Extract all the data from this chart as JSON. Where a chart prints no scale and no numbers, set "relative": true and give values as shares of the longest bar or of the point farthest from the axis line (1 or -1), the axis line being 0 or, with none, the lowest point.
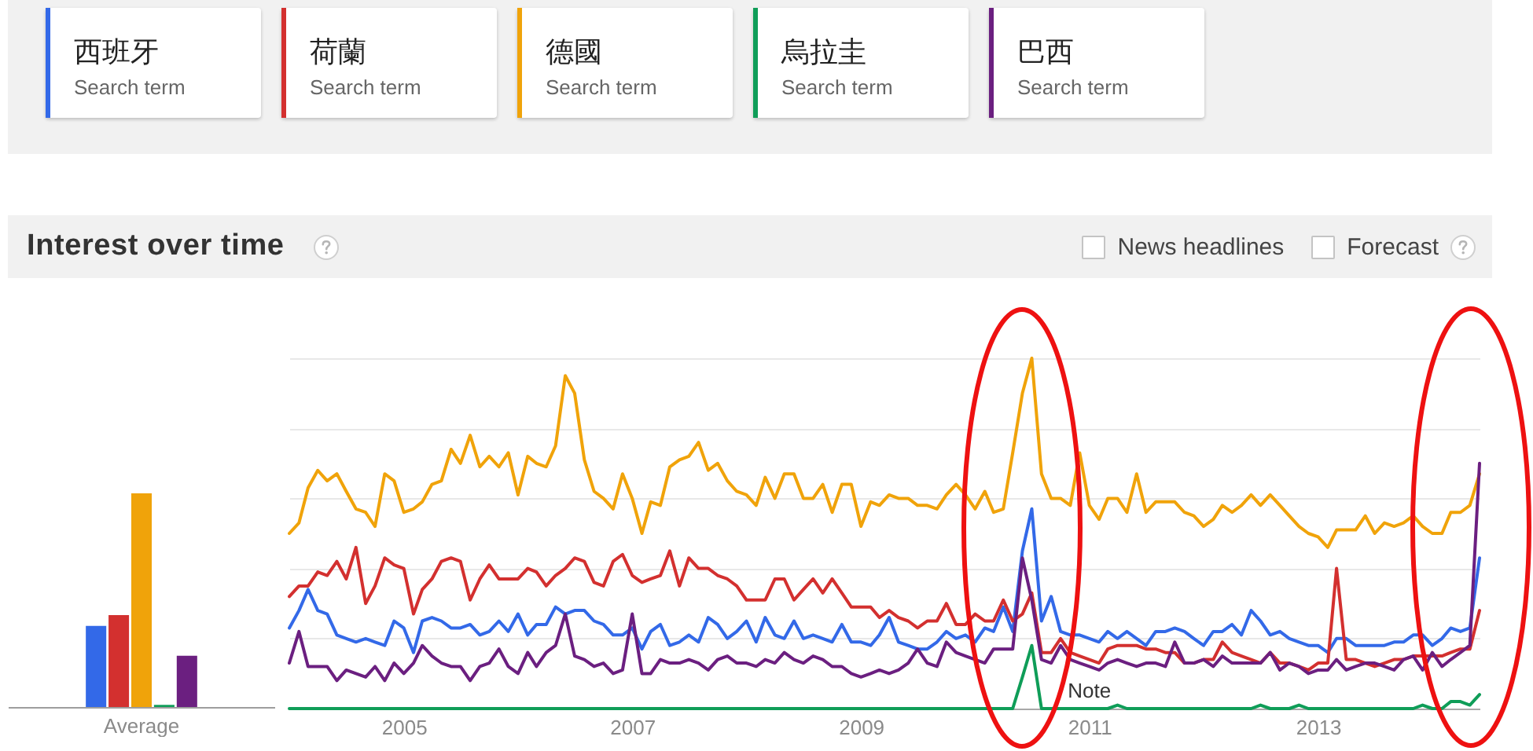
{
  "chart_data": [
    {
      "type": "bar",
      "title": "Interest over time",
      "relative": true,
      "categories": [
        "Average"
      ],
      "series": [
        {
          "color": "#3369e8",
          "values": [
            0.38
          ]
        },
        {
          "color": "#d3302f",
          "values": [
            0.43
          ]
        },
        {
          "color": "#f0a30a",
          "values": [
            1
          ]
        },
        {
          "color": "#0f9d58",
          "values": [
            0.01
          ]
        },
        {
          "color": "#6b1f80",
          "values": [
            0.24
          ]
        }
      ]
    },
    {
      "type": "line",
      "relative": true,
      "grid": "y",
      "legend": "top left",
      "x": [
        "2004-01",
        "2004-02",
        "2004-03",
        "2004-04",
        "2004-05",
        "2004-06",
        "2004-07",
        "2004-08",
        "2004-09",
        "2004-10",
        "2004-11",
        "2004-12",
        "2005-01",
        "2005-02",
        "2005-03",
        "2005-04",
        "2005-05",
        "2005-06",
        "2005-07",
        "2005-08",
        "2005-09",
        "2005-10",
        "2005-11",
        "2005-12",
        "2006-01",
        "2006-02",
        "2006-03",
        "2006-04",
        "2006-05",
        "2006-06",
        "2006-07",
        "2006-08",
        "2006-09",
        "2006-10",
        "2006-11",
        "2006-12",
        "2007-01",
        "2007-02",
        "2007-03",
        "2007-04",
        "2007-05",
        "2007-06",
        "2007-07",
        "2007-08",
        "2007-09",
        "2007-10",
        "2007-11",
        "2007-12",
        "2008-01",
        "2008-02",
        "2008-03",
        "2008-04",
        "2008-05",
        "2008-06",
        "2008-07",
        "2008-08",
        "2008-09",
        "2008-10",
        "2008-11",
        "2008-12",
        "2009-01",
        "2009-02",
        "2009-03",
        "2009-04",
        "2009-05",
        "2009-06",
        "2009-07",
        "2009-08",
        "2009-09",
        "2009-10",
        "2009-11",
        "2009-12",
        "2010-01",
        "2010-02",
        "2010-03",
        "2010-04",
        "2010-05",
        "2010-06",
        "2010-07",
        "2010-08",
        "2010-09",
        "2010-10",
        "2010-11",
        "2010-12",
        "2011-01",
        "2011-02",
        "2011-03",
        "2011-04",
        "2011-05",
        "2011-06",
        "2011-07",
        "2011-08",
        "2011-09",
        "2011-10",
        "2011-11",
        "2011-12",
        "2012-01",
        "2012-02",
        "2012-03",
        "2012-04",
        "2012-05",
        "2012-06",
        "2012-07",
        "2012-08",
        "2012-09",
        "2012-10",
        "2012-11",
        "2012-12",
        "2013-01",
        "2013-02",
        "2013-03",
        "2013-04",
        "2013-05",
        "2013-06",
        "2013-07",
        "2013-08",
        "2013-09",
        "2013-10",
        "2013-11",
        "2013-12",
        "2014-01",
        "2014-02",
        "2014-03",
        "2014-04",
        "2014-05",
        "2014-06"
      ],
      "xlim": [
        "2004-01",
        "2014-06"
      ],
      "xticks": [
        "2005",
        "2007",
        "2009",
        "2011",
        "2013"
      ],
      "series": [
        {
          "name": "西班牙",
          "color": "#3369e8",
          "values": [
            0.23,
            0.28,
            0.34,
            0.28,
            0.27,
            0.21,
            0.2,
            0.19,
            0.2,
            0.19,
            0.18,
            0.25,
            0.23,
            0.16,
            0.25,
            0.26,
            0.25,
            0.23,
            0.23,
            0.24,
            0.21,
            0.22,
            0.25,
            0.22,
            0.27,
            0.21,
            0.24,
            0.24,
            0.29,
            0.27,
            0.28,
            0.28,
            0.25,
            0.24,
            0.21,
            0.21,
            0.23,
            0.17,
            0.22,
            0.24,
            0.18,
            0.19,
            0.21,
            0.19,
            0.26,
            0.24,
            0.2,
            0.22,
            0.25,
            0.19,
            0.26,
            0.21,
            0.2,
            0.25,
            0.2,
            0.21,
            0.2,
            0.19,
            0.24,
            0.19,
            0.19,
            0.18,
            0.21,
            0.26,
            0.19,
            0.18,
            0.17,
            0.17,
            0.19,
            0.22,
            0.2,
            0.21,
            0.19,
            0.23,
            0.22,
            0.29,
            0.22,
            0.45,
            0.57,
            0.25,
            0.32,
            0.22,
            0.21,
            0.21,
            0.2,
            0.19,
            0.22,
            0.2,
            0.22,
            0.2,
            0.18,
            0.22,
            0.22,
            0.23,
            0.22,
            0.2,
            0.18,
            0.22,
            0.22,
            0.24,
            0.21,
            0.28,
            0.25,
            0.21,
            0.22,
            0.2,
            0.19,
            0.18,
            0.18,
            0.16,
            0.2,
            0.2,
            0.18,
            0.18,
            0.18,
            0.18,
            0.19,
            0.19,
            0.21,
            0.21,
            0.18,
            0.2,
            0.23,
            0.22,
            0.23,
            0.43
          ]
        },
        {
          "name": "荷蘭",
          "color": "#d3302f",
          "values": [
            0.32,
            0.35,
            0.35,
            0.39,
            0.38,
            0.42,
            0.37,
            0.46,
            0.3,
            0.35,
            0.43,
            0.41,
            0.4,
            0.27,
            0.34,
            0.37,
            0.42,
            0.43,
            0.42,
            0.31,
            0.37,
            0.41,
            0.37,
            0.37,
            0.37,
            0.4,
            0.39,
            0.35,
            0.38,
            0.4,
            0.43,
            0.42,
            0.36,
            0.35,
            0.42,
            0.44,
            0.38,
            0.36,
            0.37,
            0.38,
            0.45,
            0.35,
            0.43,
            0.4,
            0.4,
            0.38,
            0.37,
            0.35,
            0.31,
            0.31,
            0.31,
            0.37,
            0.37,
            0.31,
            0.34,
            0.37,
            0.33,
            0.37,
            0.33,
            0.29,
            0.29,
            0.29,
            0.26,
            0.28,
            0.26,
            0.25,
            0.23,
            0.25,
            0.25,
            0.3,
            0.24,
            0.24,
            0.27,
            0.25,
            0.25,
            0.31,
            0.25,
            0.27,
            0.33,
            0.16,
            0.16,
            0.2,
            0.16,
            0.15,
            0.14,
            0.13,
            0.17,
            0.18,
            0.18,
            0.18,
            0.17,
            0.17,
            0.16,
            0.16,
            0.13,
            0.13,
            0.14,
            0.14,
            0.19,
            0.16,
            0.15,
            0.14,
            0.13,
            0.16,
            0.13,
            0.13,
            0.12,
            0.11,
            0.13,
            0.13,
            0.4,
            0.14,
            0.14,
            0.13,
            0.12,
            0.13,
            0.14,
            0.14,
            0.15,
            0.15,
            0.15,
            0.15,
            0.16,
            0.17,
            0.17,
            0.28
          ]
        },
        {
          "name": "德國",
          "color": "#f0a30a",
          "values": [
            0.5,
            0.53,
            0.63,
            0.68,
            0.65,
            0.67,
            0.62,
            0.57,
            0.56,
            0.52,
            0.67,
            0.65,
            0.56,
            0.57,
            0.59,
            0.64,
            0.65,
            0.74,
            0.7,
            0.78,
            0.69,
            0.72,
            0.69,
            0.73,
            0.61,
            0.72,
            0.7,
            0.69,
            0.75,
            0.95,
            0.9,
            0.71,
            0.62,
            0.6,
            0.57,
            0.67,
            0.6,
            0.5,
            0.59,
            0.58,
            0.69,
            0.71,
            0.72,
            0.76,
            0.68,
            0.7,
            0.65,
            0.62,
            0.61,
            0.58,
            0.66,
            0.6,
            0.67,
            0.67,
            0.6,
            0.6,
            0.64,
            0.56,
            0.64,
            0.64,
            0.52,
            0.59,
            0.58,
            0.61,
            0.6,
            0.6,
            0.58,
            0.58,
            0.57,
            0.61,
            0.64,
            0.61,
            0.57,
            0.62,
            0.56,
            0.57,
            0.73,
            0.9,
            1,
            0.67,
            0.6,
            0.6,
            0.58,
            0.73,
            0.58,
            0.54,
            0.6,
            0.6,
            0.56,
            0.67,
            0.56,
            0.59,
            0.59,
            0.59,
            0.56,
            0.55,
            0.52,
            0.54,
            0.58,
            0.56,
            0.58,
            0.61,
            0.58,
            0.61,
            0.58,
            0.55,
            0.52,
            0.5,
            0.49,
            0.46,
            0.51,
            0.51,
            0.51,
            0.55,
            0.5,
            0.53,
            0.52,
            0.53,
            0.55,
            0.52,
            0.5,
            0.5,
            0.56,
            0.56,
            0.58,
            0.67
          ]
        },
        {
          "name": "烏拉圭",
          "color": "#0f9d58",
          "values": [
            0,
            0,
            0,
            0,
            0,
            0,
            0,
            0,
            0,
            0,
            0,
            0,
            0,
            0,
            0,
            0,
            0,
            0,
            0,
            0,
            0,
            0,
            0,
            0,
            0,
            0,
            0,
            0,
            0,
            0,
            0,
            0,
            0,
            0,
            0,
            0,
            0,
            0,
            0,
            0,
            0,
            0,
            0,
            0,
            0,
            0,
            0,
            0,
            0,
            0,
            0,
            0,
            0,
            0,
            0,
            0,
            0,
            0,
            0,
            0,
            0,
            0,
            0,
            0,
            0,
            0,
            0,
            0,
            0,
            0,
            0,
            0,
            0,
            0,
            0,
            0,
            0,
            0.09,
            0.18,
            0,
            0,
            0,
            0,
            0,
            0,
            0,
            0,
            0.01,
            0,
            0,
            0,
            0,
            0,
            0,
            0,
            0,
            0,
            0,
            0,
            0,
            0,
            0,
            0.01,
            0,
            0,
            0,
            0.01,
            0,
            0,
            0,
            0,
            0,
            0,
            0,
            0,
            0,
            0,
            0,
            0,
            0.01,
            0,
            0,
            0.02,
            0.02,
            0.01,
            0.04
          ]
        },
        {
          "name": "巴西",
          "color": "#6b1f80",
          "values": [
            0.13,
            0.22,
            0.12,
            0.12,
            0.12,
            0.08,
            0.11,
            0.1,
            0.09,
            0.12,
            0.08,
            0.13,
            0.1,
            0.13,
            0.18,
            0.15,
            0.13,
            0.12,
            0.12,
            0.08,
            0.12,
            0.13,
            0.17,
            0.12,
            0.1,
            0.16,
            0.12,
            0.16,
            0.18,
            0.27,
            0.15,
            0.14,
            0.12,
            0.13,
            0.1,
            0.11,
            0.27,
            0.1,
            0.1,
            0.14,
            0.13,
            0.13,
            0.14,
            0.13,
            0.11,
            0.14,
            0.15,
            0.13,
            0.13,
            0.12,
            0.14,
            0.13,
            0.16,
            0.14,
            0.13,
            0.15,
            0.14,
            0.12,
            0.12,
            0.1,
            0.09,
            0.1,
            0.11,
            0.1,
            0.11,
            0.13,
            0.17,
            0.13,
            0.12,
            0.19,
            0.16,
            0.15,
            0.14,
            0.13,
            0.17,
            0.17,
            0.17,
            0.43,
            0.31,
            0.14,
            0.13,
            0.18,
            0.14,
            0.13,
            0.12,
            0.11,
            0.13,
            0.14,
            0.13,
            0.12,
            0.13,
            0.13,
            0.12,
            0.19,
            0.13,
            0.13,
            0.14,
            0.12,
            0.15,
            0.13,
            0.13,
            0.13,
            0.13,
            0.16,
            0.11,
            0.13,
            0.12,
            0.1,
            0.11,
            0.11,
            0.14,
            0.11,
            0.12,
            0.13,
            0.13,
            0.12,
            0.11,
            0.14,
            0.15,
            0.11,
            0.16,
            0.12,
            0.14,
            0.16,
            0.18,
            0.7
          ]
        }
      ],
      "annotations": [
        "Search term",
        "Search term",
        "Search term",
        "Search term",
        "Search term",
        "News headlines",
        "Forecast",
        {
          "text": "Note",
          "x": "2011-01",
          "y": 0
        }
      ]
    }
  ]
}
